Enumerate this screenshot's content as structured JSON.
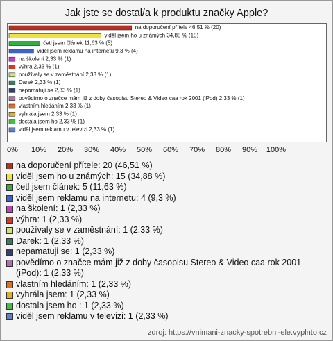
{
  "chart_data": {
    "type": "bar",
    "orientation": "horizontal",
    "title": "Jak jste se dostal/a k produktu značky Apple?",
    "categories": [
      "na doporučení přítele",
      "viděl jsem ho u známých",
      "četl jsem článek",
      "viděl jsem reklamu na internetu",
      "na školení",
      "výhra",
      "používaly se v zaměstnání",
      "Darek",
      "nepamatuji se",
      "povědímo o značce mám již z doby časopisu Stereo & Video caa rok 2001 (iPod)",
      "vlastním hledáním",
      "vyhrála jsem",
      "dostala jsem ho ",
      "viděl jsem reklamu v televizi"
    ],
    "values": [
      46.51,
      34.88,
      11.63,
      9.3,
      2.33,
      2.33,
      2.33,
      2.33,
      2.33,
      2.33,
      2.33,
      2.33,
      2.33,
      2.33
    ],
    "value_labels": [
      "na doporučení přítele 46,51 % (20)",
      "viděl jsem ho u známých 34,88 % (15)",
      "četl jsem článek 11,63 % (5)",
      "viděl jsem reklamu na internetu 9,3 % (4)",
      "na školení 2,33 % (1)",
      "výhra 2,33 % (1)",
      "používaly se v zaměstnání 2,33 % (1)",
      "Darek 2,33 % (1)",
      "nepamatuji se 2,33 % (1)",
      "povědímo o značce mám již z doby časopisu Stereo & Video caa rok 2001 (iPod) 2,33 % (1)",
      "vlastním hledáním 2,33 % (1)",
      "vyhrála jsem 2,33 % (1)",
      "dostala jsem ho  2,33 % (1)",
      "viděl jsem reklamu v televizi 2,33 % (1)"
    ],
    "legend_labels": [
      "na doporučení přítele: 20 (46,51 %)",
      "viděl jsem ho u známých: 15 (34,88 %)",
      "četl jsem článek: 5 (11,63 %)",
      "viděl jsem reklamu na internetu: 4 (9,3 %)",
      "na školení: 1 (2,33 %)",
      "výhra: 1 (2,33 %)",
      "používaly se v zaměstnání: 1 (2,33 %)",
      "Darek: 1 (2,33 %)",
      "nepamatuji se: 1 (2,33 %)",
      "povědímo o značce mám již z doby časopisu Stereo & Video caa rok 2001 (iPod): 1 (2,33 %)",
      "vlastním hledáním: 1 (2,33 %)",
      "vyhrála jsem: 1 (2,33 %)",
      "dostala jsem ho : 1 (2,33 %)",
      "viděl jsem reklamu v televizi: 1 (2,33 %)"
    ],
    "colors": [
      "#b83020",
      "#f0e040",
      "#30b040",
      "#4060d0",
      "#c040c0",
      "#d83820",
      "#c8e870",
      "#308060",
      "#304070",
      "#b070b0",
      "#e07020",
      "#e0b020",
      "#40c040",
      "#6080c8"
    ],
    "xlim": [
      0,
      100
    ],
    "xticks": [
      {
        "value": 0,
        "label": "0%"
      },
      {
        "value": 10,
        "label": "10%"
      },
      {
        "value": 20,
        "label": "20%"
      },
      {
        "value": 30,
        "label": "30%"
      },
      {
        "value": 40,
        "label": "40%"
      },
      {
        "value": 50,
        "label": "50%"
      },
      {
        "value": 60,
        "label": "60%"
      },
      {
        "value": 70,
        "label": "70%"
      },
      {
        "value": 80,
        "label": "80%"
      },
      {
        "value": 90,
        "label": "90%"
      },
      {
        "value": 100,
        "label": "100%"
      }
    ],
    "source": "zdroj: https://vnimani-znacky-spotrebni-ele.vyplnto.cz"
  }
}
